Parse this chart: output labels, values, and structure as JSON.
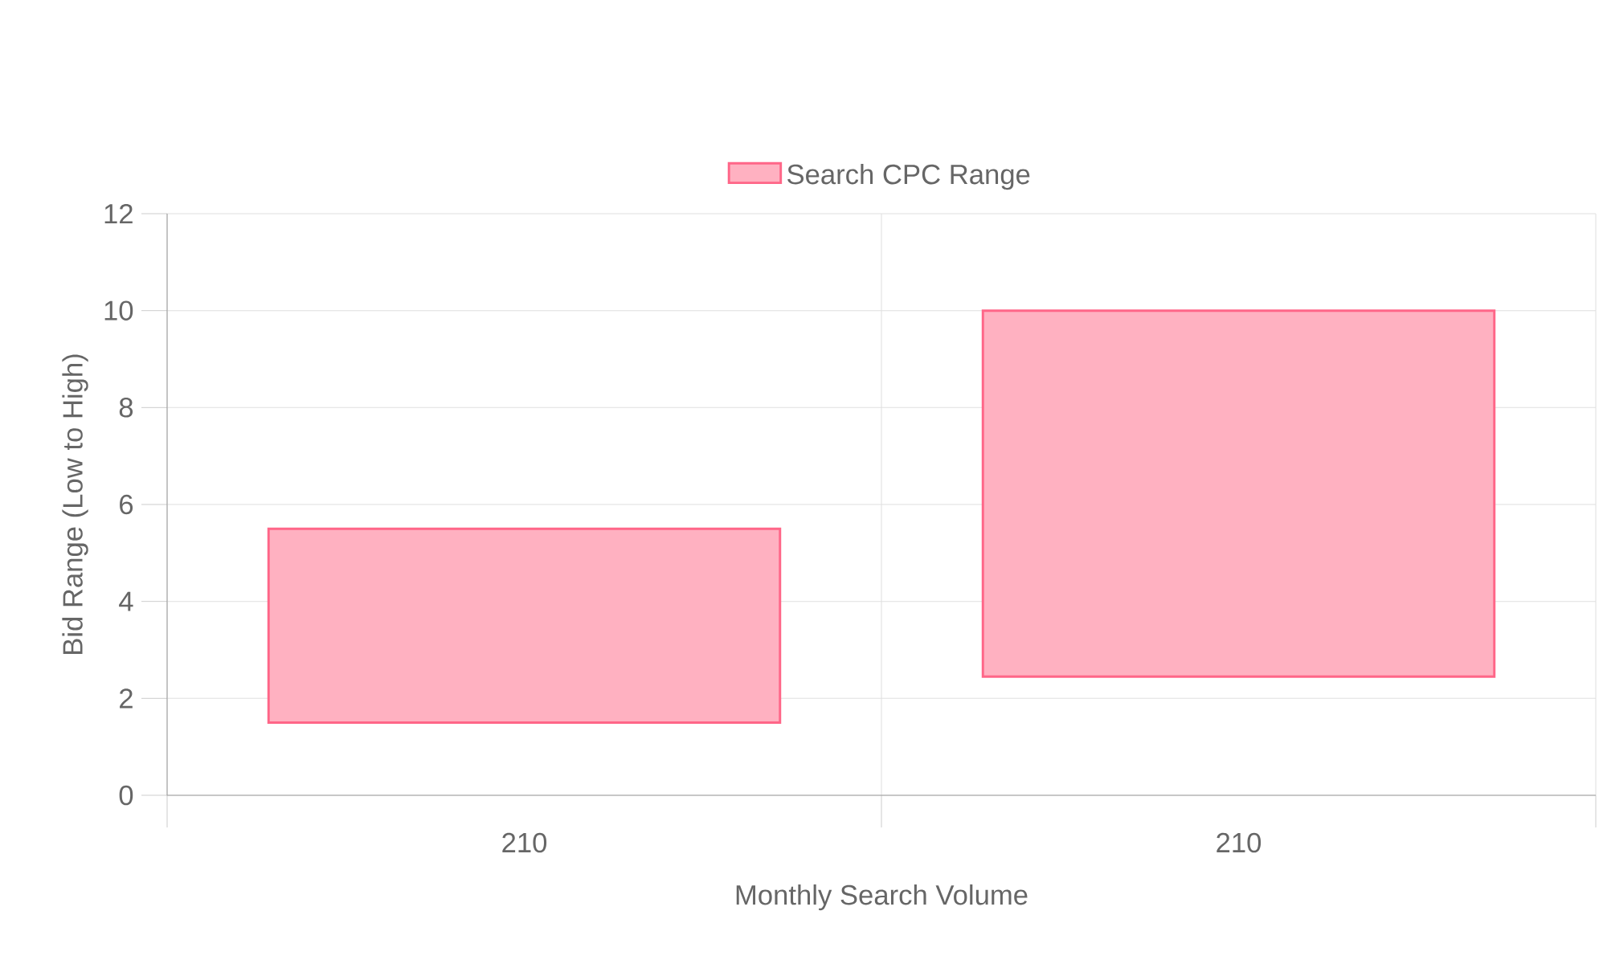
{
  "chart_data": {
    "type": "bar",
    "xlabel": "Monthly Search Volume",
    "ylabel": "Bid Range (Low to High)",
    "categories": [
      "210",
      "210"
    ],
    "series": [
      {
        "name": "Search CPC Range",
        "color": "#ffb1c1",
        "values": [
          4,
          7.55
        ],
        "base": [
          1.5,
          2.45
        ]
      }
    ],
    "ylim": [
      0,
      12
    ],
    "yticks": [
      0,
      2,
      4,
      6,
      8,
      10,
      12
    ],
    "grid": true,
    "legend": "top"
  }
}
